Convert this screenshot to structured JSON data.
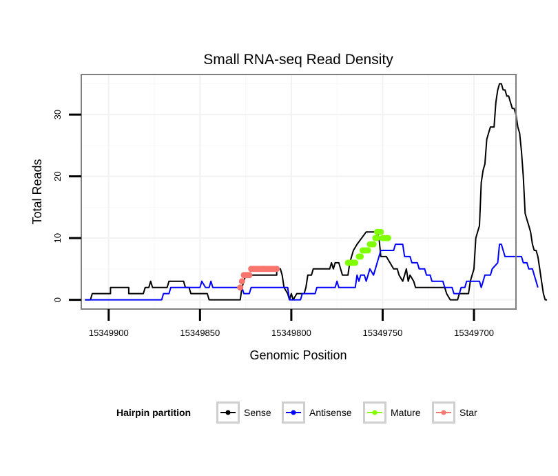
{
  "chart_data": {
    "type": "line",
    "title": "Small RNA-seq Read Density",
    "xlabel": "Genomic Position",
    "ylabel": "Total Reads",
    "x_reversed": true,
    "xlim": [
      15349915,
      15349677
    ],
    "ylim": [
      -1.5,
      36.5
    ],
    "x_ticks": [
      15349900,
      15349850,
      15349800,
      15349750,
      15349700
    ],
    "x_tick_labels": [
      "15349900",
      "15349850",
      "15349800",
      "15349750",
      "15349700"
    ],
    "y_ticks": [
      0,
      10,
      20,
      30
    ],
    "y_tick_labels": [
      "0",
      "10",
      "20",
      "30"
    ],
    "grid": true,
    "legend": {
      "title": "Hairpin partition",
      "position": "bottom",
      "entries": [
        {
          "label": "Sense",
          "color": "#000000"
        },
        {
          "label": "Antisense",
          "color": "#0000ff"
        },
        {
          "label": "Mature",
          "color": "#7fff00"
        },
        {
          "label": "Star",
          "color": "#f8766d"
        }
      ]
    },
    "series": [
      {
        "name": "Sense",
        "color": "#000000",
        "style": "line",
        "points": [
          [
            15349913,
            0
          ],
          [
            15349910,
            0
          ],
          [
            15349909,
            1
          ],
          [
            15349899,
            1
          ],
          [
            15349899,
            2
          ],
          [
            15349889,
            2
          ],
          [
            15349889,
            1
          ],
          [
            15349881,
            1
          ],
          [
            15349880,
            2
          ],
          [
            15349878,
            2
          ],
          [
            15349877,
            3
          ],
          [
            15349876,
            2
          ],
          [
            15349868,
            2
          ],
          [
            15349867,
            3
          ],
          [
            15349859,
            3
          ],
          [
            15349858,
            2
          ],
          [
            15349856,
            2
          ],
          [
            15349855,
            1
          ],
          [
            15349846,
            1
          ],
          [
            15349845,
            0
          ],
          [
            15349828,
            0
          ],
          [
            15349827,
            2
          ],
          [
            15349826,
            3
          ],
          [
            15349825,
            4
          ],
          [
            15349808,
            4
          ],
          [
            15349808,
            5
          ],
          [
            15349806,
            5
          ],
          [
            15349805,
            4
          ],
          [
            15349804,
            2
          ],
          [
            15349802,
            1
          ],
          [
            15349801,
            0
          ],
          [
            15349800,
            1
          ],
          [
            15349799,
            0
          ],
          [
            15349797,
            1
          ],
          [
            15349793,
            1
          ],
          [
            15349792,
            2
          ],
          [
            15349791,
            4
          ],
          [
            15349789,
            4
          ],
          [
            15349788,
            5
          ],
          [
            15349779,
            5
          ],
          [
            15349778,
            6
          ],
          [
            15349777,
            5
          ],
          [
            15349776,
            6
          ],
          [
            15349774,
            6
          ],
          [
            15349772,
            4
          ],
          [
            15349769,
            4
          ],
          [
            15349768,
            6
          ],
          [
            15349766,
            8
          ],
          [
            15349764,
            9
          ],
          [
            15349759,
            11
          ],
          [
            15349753,
            11
          ],
          [
            15349752,
            10
          ],
          [
            15349751,
            7
          ],
          [
            15349748,
            7
          ],
          [
            15349746,
            6
          ],
          [
            15349744,
            5
          ],
          [
            15349742,
            5
          ],
          [
            15349741,
            4
          ],
          [
            15349739,
            3
          ],
          [
            15349738,
            4
          ],
          [
            15349737,
            5
          ],
          [
            15349736,
            3
          ],
          [
            15349735,
            4
          ],
          [
            15349733,
            3
          ],
          [
            15349732,
            2
          ],
          [
            15349716,
            2
          ],
          [
            15349715,
            1
          ],
          [
            15349713,
            0
          ],
          [
            15349709,
            0
          ],
          [
            15349708,
            1
          ],
          [
            15349703,
            1
          ],
          [
            15349702,
            3
          ],
          [
            15349700,
            5
          ],
          [
            15349699,
            10
          ],
          [
            15349698,
            11
          ],
          [
            15349697,
            12
          ],
          [
            15349696,
            19
          ],
          [
            15349695,
            21
          ],
          [
            15349694,
            22
          ],
          [
            15349693,
            26
          ],
          [
            15349692,
            27
          ],
          [
            15349691,
            28
          ],
          [
            15349689,
            28
          ],
          [
            15349688,
            32
          ],
          [
            15349687,
            34
          ],
          [
            15349686,
            35
          ],
          [
            15349685,
            35
          ],
          [
            15349684,
            34
          ],
          [
            15349683,
            34
          ],
          [
            15349682,
            33
          ],
          [
            15349681,
            33
          ],
          [
            15349680,
            32
          ],
          [
            15349679,
            31
          ],
          [
            15349678,
            31
          ],
          [
            15349677,
            30
          ],
          [
            15349676,
            28
          ],
          [
            15349675,
            27
          ],
          [
            15349674,
            24
          ],
          [
            15349673,
            20
          ],
          [
            15349672,
            14
          ],
          [
            15349671,
            13
          ],
          [
            15349670,
            12
          ],
          [
            15349669,
            11
          ],
          [
            15349668,
            9
          ],
          [
            15349667,
            8
          ],
          [
            15349666,
            8
          ],
          [
            15349665,
            7
          ],
          [
            15349664,
            5
          ],
          [
            15349663,
            3
          ],
          [
            15349662,
            1
          ],
          [
            15349661,
            0
          ],
          [
            15349660,
            0
          ]
        ]
      },
      {
        "name": "Antisense",
        "color": "#0000ff",
        "style": "line",
        "points": [
          [
            15349913,
            0
          ],
          [
            15349871,
            0
          ],
          [
            15349870,
            1
          ],
          [
            15349867,
            1
          ],
          [
            15349866,
            2
          ],
          [
            15349850,
            2
          ],
          [
            15349849,
            3
          ],
          [
            15349847,
            2
          ],
          [
            15349845,
            2
          ],
          [
            15349844,
            3
          ],
          [
            15349843,
            2
          ],
          [
            15349827,
            2
          ],
          [
            15349826,
            1
          ],
          [
            15349823,
            1
          ],
          [
            15349822,
            2
          ],
          [
            15349802,
            2
          ],
          [
            15349801,
            0
          ],
          [
            15349795,
            0
          ],
          [
            15349794,
            1
          ],
          [
            15349787,
            1
          ],
          [
            15349786,
            2
          ],
          [
            15349776,
            2
          ],
          [
            15349775,
            3
          ],
          [
            15349774,
            2
          ],
          [
            15349765,
            2
          ],
          [
            15349764,
            4
          ],
          [
            15349763,
            3
          ],
          [
            15349762,
            4
          ],
          [
            15349760,
            4
          ],
          [
            15349759,
            3
          ],
          [
            15349758,
            4
          ],
          [
            15349757,
            5
          ],
          [
            15349755,
            4
          ],
          [
            15349754,
            5
          ],
          [
            15349753,
            6
          ],
          [
            15349751,
            8
          ],
          [
            15349744,
            8
          ],
          [
            15349743,
            9
          ],
          [
            15349739,
            9
          ],
          [
            15349738,
            7
          ],
          [
            15349735,
            7
          ],
          [
            15349734,
            6
          ],
          [
            15349731,
            6
          ],
          [
            15349730,
            5
          ],
          [
            15349727,
            5
          ],
          [
            15349726,
            4
          ],
          [
            15349724,
            4
          ],
          [
            15349723,
            3
          ],
          [
            15349717,
            3
          ],
          [
            15349716,
            2
          ],
          [
            15349712,
            2
          ],
          [
            15349711,
            1
          ],
          [
            15349708,
            1
          ],
          [
            15349707,
            2
          ],
          [
            15349705,
            2
          ],
          [
            15349704,
            3
          ],
          [
            15349697,
            3
          ],
          [
            15349696,
            2
          ],
          [
            15349695,
            3
          ],
          [
            15349694,
            4
          ],
          [
            15349691,
            4
          ],
          [
            15349690,
            5
          ],
          [
            15349687,
            6
          ],
          [
            15349686,
            9
          ],
          [
            15349685,
            9
          ],
          [
            15349684,
            8
          ],
          [
            15349683,
            7
          ],
          [
            15349674,
            7
          ],
          [
            15349673,
            6
          ],
          [
            15349671,
            6
          ],
          [
            15349670,
            5
          ],
          [
            15349668,
            5
          ],
          [
            15349667,
            4
          ],
          [
            15349666,
            3
          ],
          [
            15349665,
            2
          ]
        ]
      },
      {
        "name": "Mature",
        "color": "#7fff00",
        "style": "points",
        "points": [
          [
            15349769,
            6
          ],
          [
            15349768,
            6
          ],
          [
            15349767,
            6
          ],
          [
            15349766,
            6
          ],
          [
            15349765,
            6
          ],
          [
            15349763,
            7
          ],
          [
            15349762,
            7
          ],
          [
            15349761,
            8
          ],
          [
            15349760,
            8
          ],
          [
            15349759,
            8
          ],
          [
            15349758,
            8
          ],
          [
            15349757,
            9
          ],
          [
            15349756,
            9
          ],
          [
            15349755,
            9
          ],
          [
            15349754,
            10
          ],
          [
            15349753,
            10
          ],
          [
            15349753,
            11
          ],
          [
            15349752,
            11
          ],
          [
            15349751,
            11
          ],
          [
            15349750,
            10
          ],
          [
            15349749,
            10
          ],
          [
            15349748,
            10
          ],
          [
            15349747,
            10
          ]
        ]
      },
      {
        "name": "Star",
        "color": "#f8766d",
        "style": "points",
        "points": [
          [
            15349828,
            2
          ],
          [
            15349827,
            3
          ],
          [
            15349826,
            4
          ],
          [
            15349825,
            4
          ],
          [
            15349824,
            4
          ],
          [
            15349823,
            4
          ],
          [
            15349822,
            5
          ],
          [
            15349821,
            5
          ],
          [
            15349820,
            5
          ],
          [
            15349819,
            5
          ],
          [
            15349818,
            5
          ],
          [
            15349817,
            5
          ],
          [
            15349816,
            5
          ],
          [
            15349815,
            5
          ],
          [
            15349814,
            5
          ],
          [
            15349813,
            5
          ],
          [
            15349812,
            5
          ],
          [
            15349811,
            5
          ],
          [
            15349810,
            5
          ],
          [
            15349809,
            5
          ],
          [
            15349808,
            5
          ]
        ]
      }
    ]
  }
}
